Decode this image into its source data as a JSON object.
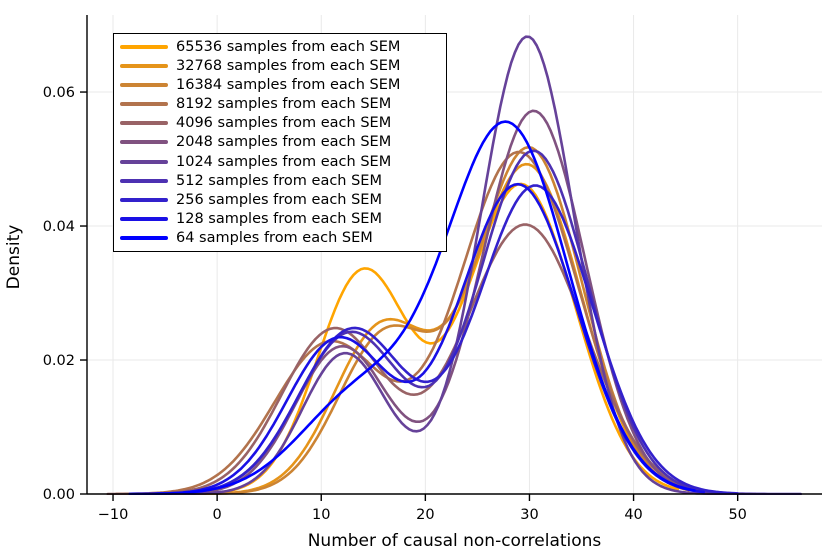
{
  "chart_data": {
    "type": "line",
    "subtype": "kernel-density",
    "title": "",
    "xlabel": "Number of causal non-correlations",
    "ylabel": "Density",
    "grid": true,
    "legend_position": "top-left",
    "xlim": [
      -12.5,
      58.1
    ],
    "ylim": [
      0,
      0.0715
    ],
    "xticks": [
      {
        "v": -10,
        "label": "−10"
      },
      {
        "v": 0,
        "label": "0"
      },
      {
        "v": 10,
        "label": "10"
      },
      {
        "v": 20,
        "label": "20"
      },
      {
        "v": 30,
        "label": "30"
      },
      {
        "v": 40,
        "label": "40"
      },
      {
        "v": 50,
        "label": "50"
      }
    ],
    "yticks": [
      {
        "v": 0.0,
        "label": "0.00"
      },
      {
        "v": 0.02,
        "label": "0.02"
      },
      {
        "v": 0.04,
        "label": "0.04"
      },
      {
        "v": 0.06,
        "label": "0.06"
      }
    ],
    "series": [
      {
        "label": "65536 samples from each SEM",
        "color": "#FFA500",
        "x_range": [
          -6.5,
          44.5
        ],
        "key_points": {
          "left_bump": [
            14.0,
            0.0334
          ],
          "valley": [
            20.6,
            0.0225
          ],
          "main_peak": [
            29.2,
            0.0463
          ]
        },
        "components": [
          {
            "height": 0.033,
            "center": 14.0,
            "sigma": 4.4
          },
          {
            "height": 0.0462,
            "center": 29.2,
            "sigma": 5.2
          }
        ]
      },
      {
        "label": "32768 samples from each SEM",
        "color": "#E5941A",
        "x_range": [
          -6.8,
          45.0
        ],
        "key_points": {
          "left_bump": [
            15.8,
            0.0258
          ],
          "valley": [
            18.8,
            0.025
          ],
          "main_peak": [
            29.8,
            0.0491
          ]
        },
        "components": [
          {
            "height": 0.0245,
            "center": 15.8,
            "sigma": 4.6
          },
          {
            "height": 0.049,
            "center": 29.8,
            "sigma": 5.2
          }
        ]
      },
      {
        "label": "16384 samples from each SEM",
        "color": "#CC8433",
        "x_range": [
          -7.2,
          45.5
        ],
        "key_points": {
          "left_bump": [
            16.2,
            0.0251
          ],
          "valley": [
            19.0,
            0.0245
          ],
          "main_peak": [
            30.0,
            0.0517
          ]
        },
        "components": [
          {
            "height": 0.0235,
            "center": 16.2,
            "sigma": 4.6
          },
          {
            "height": 0.0515,
            "center": 30.0,
            "sigma": 5.1
          }
        ]
      },
      {
        "label": "8192 samples from each SEM",
        "color": "#B2734D",
        "x_range": [
          -9.7,
          48.0
        ],
        "key_points": {
          "left_bump": [
            10.8,
            0.0227
          ],
          "valley": [
            18.6,
            0.0173
          ],
          "main_peak": [
            29.0,
            0.0512
          ]
        },
        "components": [
          {
            "height": 0.0225,
            "center": 10.8,
            "sigma": 5.3
          },
          {
            "height": 0.051,
            "center": 29.0,
            "sigma": 5.7
          }
        ]
      },
      {
        "label": "4096 samples from each SEM",
        "color": "#996366",
        "x_range": [
          -10.5,
          49.5
        ],
        "key_points": {
          "left_bump": [
            11.2,
            0.0247
          ],
          "valley": [
            18.0,
            0.0152
          ],
          "main_peak": [
            29.6,
            0.0404
          ]
        },
        "components": [
          {
            "height": 0.0245,
            "center": 11.2,
            "sigma": 5.0
          },
          {
            "height": 0.0402,
            "center": 29.6,
            "sigma": 5.8
          }
        ]
      },
      {
        "label": "2048 samples from each SEM",
        "color": "#805280",
        "x_range": [
          -7.5,
          50.0
        ],
        "key_points": {
          "left_bump": [
            12.0,
            0.0222
          ],
          "valley": [
            17.5,
            0.0125
          ],
          "main_peak": [
            30.4,
            0.0573
          ]
        },
        "components": [
          {
            "height": 0.022,
            "center": 12.0,
            "sigma": 4.5
          },
          {
            "height": 0.0572,
            "center": 30.4,
            "sigma": 5.0
          }
        ]
      },
      {
        "label": "1024 samples from each SEM",
        "color": "#664299",
        "x_range": [
          -7.8,
          52.0
        ],
        "key_points": {
          "left_bump": [
            12.3,
            0.0212
          ],
          "valley": [
            16.9,
            0.0118
          ],
          "main_peak": [
            29.8,
            0.0686
          ]
        },
        "components": [
          {
            "height": 0.021,
            "center": 12.3,
            "sigma": 4.1
          },
          {
            "height": 0.0683,
            "center": 29.8,
            "sigma": 4.5
          }
        ]
      },
      {
        "label": "512 samples from each SEM",
        "color": "#4D31B2",
        "x_range": [
          -8.0,
          56.3
        ],
        "key_points": {
          "left_bump": [
            12.8,
            0.0242
          ],
          "valley": [
            17.3,
            0.0184
          ],
          "main_peak": [
            30.4,
            0.0513
          ]
        },
        "components": [
          {
            "height": 0.024,
            "center": 12.8,
            "sigma": 5.0
          },
          {
            "height": 0.0512,
            "center": 30.4,
            "sigma": 5.3
          }
        ]
      },
      {
        "label": "256 samples from each SEM",
        "color": "#3321CC",
        "x_range": [
          -8.1,
          50.0
        ],
        "key_points": {
          "left_bump": [
            13.0,
            0.0247
          ],
          "valley": [
            17.6,
            0.019
          ],
          "main_peak": [
            30.6,
            0.0461
          ]
        },
        "components": [
          {
            "height": 0.0245,
            "center": 13.0,
            "sigma": 5.1
          },
          {
            "height": 0.046,
            "center": 30.6,
            "sigma": 5.5
          }
        ]
      },
      {
        "label": "128 samples from each SEM",
        "color": "#1A10E5",
        "x_range": [
          -8.2,
          47.0
        ],
        "key_points": {
          "left_bump": [
            11.6,
            0.0232
          ],
          "valley": [
            17.4,
            0.0178
          ],
          "main_peak": [
            28.9,
            0.0464
          ]
        },
        "components": [
          {
            "height": 0.023,
            "center": 11.6,
            "sigma": 4.9
          },
          {
            "height": 0.0462,
            "center": 28.9,
            "sigma": 5.6
          }
        ]
      },
      {
        "label": "64 samples from each SEM",
        "color": "#0000FF",
        "x_range": [
          -8.4,
          46.0
        ],
        "key_points": {
          "left_bump": [
            13.8,
            0.0185
          ],
          "valley": [
            15.0,
            0.0195
          ],
          "main_peak": [
            27.9,
            0.0549
          ]
        },
        "components": [
          {
            "height": 0.0145,
            "center": 13.8,
            "sigma": 5.8
          },
          {
            "height": 0.0548,
            "center": 27.9,
            "sigma": 5.9
          }
        ]
      }
    ],
    "style": {
      "grid_color": "#E9E9E9",
      "axis_color": "#000000",
      "curve_width": 2.6,
      "background": "#FFFFFF"
    }
  }
}
